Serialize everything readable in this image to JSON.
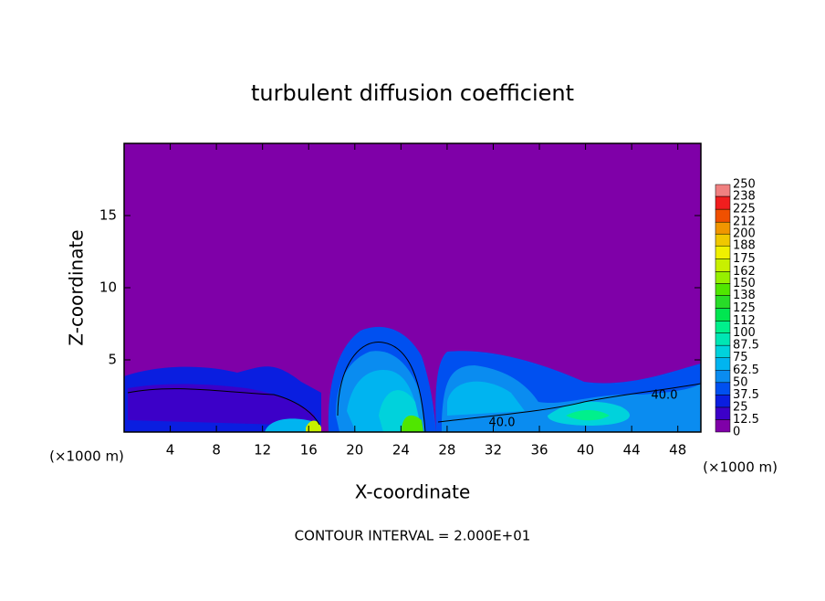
{
  "chart_data": {
    "type": "contour",
    "title": "turbulent diffusion coefficient",
    "x_label": "X-coordinate",
    "y_label": "Z-coordinate",
    "x_unit": "(×1000 m)",
    "y_unit": "(×1000 m)",
    "xlim": [
      0,
      50
    ],
    "xticks": [
      4,
      8,
      12,
      16,
      20,
      24,
      28,
      32,
      36,
      40,
      44,
      48
    ],
    "ylim": [
      0,
      20
    ],
    "yticks": [
      5,
      10,
      15
    ],
    "footnote": "CONTOUR INTERVAL = 2.000E+01",
    "contour_labels": [
      "40.0",
      "40.0"
    ],
    "colorbar": {
      "ticks": [
        0,
        12.5,
        25,
        37.5,
        50,
        62.5,
        75,
        87.5,
        100,
        112,
        125,
        138,
        150,
        162,
        175,
        188,
        200,
        212,
        225,
        238,
        250
      ],
      "colors": [
        "#7f00a8",
        "#3c00c8",
        "#0a1ee0",
        "#0050f0",
        "#0a8cf0",
        "#00b4f0",
        "#00d2dc",
        "#00e6b4",
        "#00f08c",
        "#00e650",
        "#28dc28",
        "#50e600",
        "#96f000",
        "#c8f000",
        "#f0f000",
        "#f0c800",
        "#f09600",
        "#f05000",
        "#f01e1e",
        "#f08080"
      ]
    }
  }
}
